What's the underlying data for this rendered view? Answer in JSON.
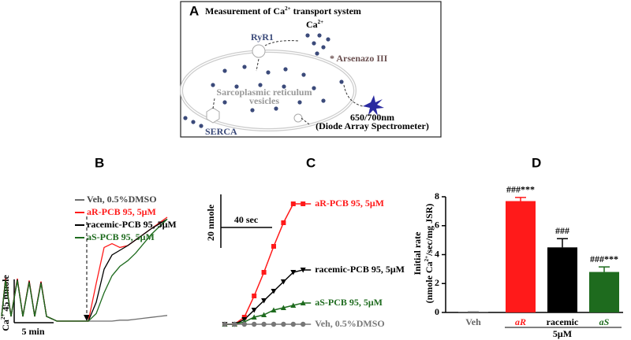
{
  "panel_labels": [
    "A",
    "B",
    "C",
    "D"
  ],
  "diagram": {
    "title": [
      "Measurement of Ca",
      "2+",
      " transport system"
    ],
    "ryr": "RyR1",
    "ca": [
      "Ca",
      "2+"
    ],
    "dye": "Arsenazo III",
    "vesicle": [
      "Sarcoplasmic reticulum",
      "vesicles"
    ],
    "wavelength": "650/700nm",
    "instrument": "(Diode Array Spectrometer)",
    "serca": "SERCA"
  },
  "chart_data": [
    {
      "type": "trace",
      "scale_y_label": [
        "Ca",
        "2+",
        " 45 nmole"
      ],
      "scale_x_label": "5 min",
      "x": [
        0,
        0.5,
        1.2,
        2,
        2.7,
        3.5,
        4.2,
        5,
        5.7,
        6.5,
        7,
        9,
        11,
        12,
        13,
        14,
        15,
        16,
        17,
        18,
        19,
        20,
        21
      ],
      "series": [
        {
          "name": "Veh, 0.5%DMSO",
          "color": "#6e6e6e",
          "values": [
            5,
            44,
            6,
            44,
            6,
            42,
            6,
            41,
            5,
            2,
            0,
            0,
            0,
            0,
            0,
            0,
            1,
            1,
            2,
            3,
            4,
            5,
            6
          ]
        },
        {
          "name": "aR-PCB 95, 5μM",
          "color": "#ff1a1a",
          "values": [
            5,
            45,
            5,
            45,
            5,
            43,
            5,
            42,
            5,
            2,
            0,
            0,
            0,
            40,
            78,
            82,
            78,
            80,
            86,
            92,
            98,
            104,
            110
          ]
        },
        {
          "name": "racemic-PCB 95, 5μM",
          "color": "#000000",
          "values": [
            5,
            44,
            5,
            44,
            5,
            42,
            5,
            41,
            5,
            2,
            0,
            0,
            0,
            20,
            55,
            70,
            75,
            80,
            86,
            92,
            98,
            103,
            108
          ]
        },
        {
          "name": "aS-PCB 95, 5μM",
          "color": "#1e6b1e",
          "values": [
            5,
            43,
            5,
            43,
            5,
            41,
            5,
            40,
            5,
            2,
            0,
            0,
            0,
            8,
            30,
            48,
            58,
            64,
            72,
            82,
            92,
            100,
            108
          ]
        }
      ]
    },
    {
      "type": "line",
      "scale_y_label": "20 nmole",
      "scale_x_label": "40 sec",
      "x": [
        0,
        8,
        16,
        24,
        32,
        40,
        48,
        56,
        64
      ],
      "series": [
        {
          "name": "aR-PCB 95, 5μM",
          "color": "#ff1a1a",
          "marker": "square",
          "values": [
            0,
            0,
            3,
            12,
            22,
            33,
            43,
            51,
            51
          ]
        },
        {
          "name": "racemic-PCB 95, 5μM",
          "color": "#000000",
          "marker": "triangle-down",
          "values": [
            0,
            0,
            2,
            6,
            10,
            14,
            18,
            22,
            23
          ]
        },
        {
          "name": "aS-PCB 95, 5μM",
          "color": "#1e6b1e",
          "marker": "triangle-up",
          "values": [
            0,
            0,
            1,
            3,
            4,
            6,
            7,
            8,
            9
          ]
        },
        {
          "name": "Veh, 0.5%DMSO",
          "color": "#777777",
          "marker": "circle",
          "values": [
            0,
            0,
            0,
            0,
            0,
            0,
            0,
            0,
            0
          ]
        }
      ]
    },
    {
      "type": "bar",
      "ylabel": [
        "Initial rate",
        "(nmole Ca",
        "2+",
        "/sec/mg JSR)"
      ],
      "categories": [
        "Veh",
        "aR",
        "racemic",
        "aS"
      ],
      "group_label": "5μM",
      "values": [
        0.02,
        7.7,
        4.5,
        2.8
      ],
      "errors": [
        0.02,
        0.25,
        0.6,
        0.35
      ],
      "colors": [
        "#777777",
        "#ff1a1a",
        "#000000",
        "#1e6b1e"
      ],
      "annotations": [
        null,
        "###***",
        "###",
        "###***"
      ],
      "ylim": [
        0,
        8
      ],
      "yticks": [
        0,
        2,
        4,
        6,
        8
      ]
    }
  ]
}
